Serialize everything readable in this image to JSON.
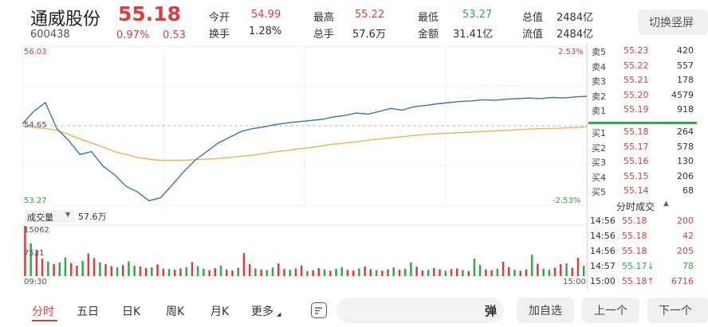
{
  "stock": {
    "name": "通威股份",
    "price": "55.18",
    "code": "600438",
    "change_pct": "0.97%",
    "change": "0.53"
  },
  "quote": {
    "open_label": "今开",
    "open": "54.99",
    "turnover_label": "换手",
    "turnover": "1.28%",
    "high_label": "最高",
    "high": "55.22",
    "volume_label": "总手",
    "volume": "57.6万",
    "low_label": "最低",
    "low": "53.27",
    "amount_label": "金额",
    "amount": "31.41亿",
    "total_value_label": "总值",
    "total_value": "2484亿",
    "float_value_label": "流值",
    "float_value": "2484亿"
  },
  "switch_button": "切换竖屏",
  "chart_labels": {
    "y_top": "56.03",
    "y_mid": "54.65",
    "y_bottom": "53.27",
    "pct_top": "2.53%",
    "pct_bottom": "-2.53%",
    "vol_selector": "成交量",
    "vol_total": "57.6万",
    "vol_max": "15062",
    "vol_mid": "7531",
    "x_start": "09:30",
    "x_end": "15:00"
  },
  "chart_data": {
    "type": "line",
    "x_range": [
      "09:30",
      "15:00"
    ],
    "ylim": [
      53.27,
      56.03
    ],
    "prev_close": 54.65,
    "series": [
      {
        "values": [
          54.68,
          54.9,
          55.05,
          54.6,
          54.4,
          54.15,
          54.2,
          53.95,
          53.8,
          53.6,
          53.5,
          53.35,
          53.4,
          53.62,
          53.85,
          54.05,
          54.2,
          54.35,
          54.45,
          54.55,
          54.6,
          54.63,
          54.67,
          54.7,
          54.72,
          54.74,
          54.76,
          54.8,
          54.83,
          54.87,
          54.85,
          54.9,
          54.95,
          54.92,
          54.98,
          55.0,
          55.03,
          55.05,
          55.07,
          55.08,
          55.1,
          55.09,
          55.11,
          55.12,
          55.13,
          55.12,
          55.14,
          55.13,
          55.15,
          55.16
        ]
      },
      {
        "values": [
          54.65,
          54.62,
          54.6,
          54.57,
          54.5,
          54.42,
          54.35,
          54.28,
          54.2,
          54.15,
          54.1,
          54.07,
          54.05,
          54.05,
          54.05,
          54.06,
          54.07,
          54.08,
          54.1,
          54.12,
          54.14,
          54.17,
          54.2,
          54.22,
          54.25,
          54.27,
          54.3,
          54.33,
          54.35,
          54.37,
          54.4,
          54.42,
          54.44,
          54.46,
          54.48,
          54.5,
          54.51,
          54.52,
          54.53,
          54.54,
          54.55,
          54.56,
          54.57,
          54.58,
          54.59,
          54.6,
          54.6,
          54.61,
          54.62,
          54.63
        ]
      }
    ],
    "volume": {
      "ylim": [
        0,
        15062
      ],
      "values": [
        15062,
        9800,
        7531,
        5200,
        4300,
        3600,
        4100,
        5600,
        3900,
        3100,
        4600,
        6800,
        5400,
        4100,
        3600,
        3000,
        2600,
        3300,
        4400,
        3100,
        2900,
        2400,
        2600,
        3500,
        2200,
        2100,
        1900,
        2300,
        2700,
        4200,
        3000,
        2200,
        1800,
        2400,
        3100,
        2000,
        1700,
        2500,
        6900,
        3600,
        2300,
        2000,
        1800,
        2600,
        3800,
        2100,
        1900,
        2300,
        3200,
        1500,
        1800,
        2400,
        2000,
        1600,
        2200,
        2700,
        1900,
        1700,
        2300,
        2900,
        2100,
        1800,
        1600,
        2000,
        2600,
        1900,
        2200,
        4100,
        2800,
        1700,
        1900,
        2400,
        2000,
        1600,
        2100,
        2300,
        1800,
        1500,
        5200,
        3300,
        2000,
        1800,
        2200,
        4300,
        2700,
        1900,
        1600,
        2000,
        6400,
        3700,
        2200,
        1900,
        2500,
        3600,
        3800,
        2500,
        5500,
        3100
      ]
    }
  },
  "orderbook": {
    "asks": [
      {
        "label": "卖5",
        "price": "55.23",
        "vol": "420"
      },
      {
        "label": "卖4",
        "price": "55.22",
        "vol": "557"
      },
      {
        "label": "卖3",
        "price": "55.21",
        "vol": "178"
      },
      {
        "label": "卖2",
        "price": "55.20",
        "vol": "4579"
      },
      {
        "label": "卖1",
        "price": "55.19",
        "vol": "918"
      }
    ],
    "bids": [
      {
        "label": "买1",
        "price": "55.18",
        "vol": "264"
      },
      {
        "label": "买2",
        "price": "55.17",
        "vol": "578"
      },
      {
        "label": "买3",
        "price": "55.16",
        "vol": "130"
      },
      {
        "label": "买4",
        "price": "55.15",
        "vol": "206"
      },
      {
        "label": "买5",
        "price": "55.14",
        "vol": "68"
      }
    ]
  },
  "trades": {
    "title": "分时成交",
    "rows": [
      {
        "time": "14:56",
        "price": "55.18",
        "vol": "200",
        "dir": ""
      },
      {
        "time": "14:56",
        "price": "55.18",
        "vol": "42",
        "dir": ""
      },
      {
        "time": "14:56",
        "price": "55.18",
        "vol": "205",
        "dir": ""
      },
      {
        "time": "14:57",
        "price": "55.17↓",
        "vol": "78",
        "dir": "down"
      },
      {
        "time": "15:00",
        "price": "55.18↑",
        "vol": "6716",
        "dir": "up"
      }
    ]
  },
  "tabs": [
    "分时",
    "五日",
    "日K",
    "周K",
    "月K",
    "更多"
  ],
  "bottom": {
    "danmu_glyph": "弹",
    "add_watch": "加自选",
    "prev": "上一个",
    "next": "下一个"
  },
  "colors": {
    "up": "#e23b3b",
    "down": "#2bab4a",
    "price_line": "#3b73b9",
    "avg_line": "#e8b74a"
  }
}
